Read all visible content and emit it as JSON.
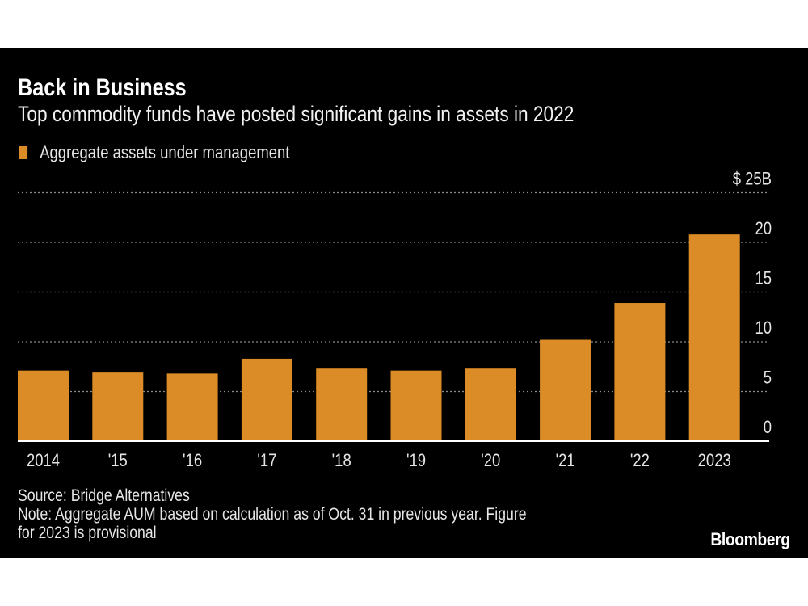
{
  "chart_data": {
    "type": "bar",
    "title": "Back in Business",
    "subtitle": "Top commodity funds have posted significant gains in assets in 2022",
    "categories": [
      "2014",
      "'15",
      "'16",
      "'17",
      "'18",
      "'19",
      "'20",
      "'21",
      "'22",
      "2023"
    ],
    "series": [
      {
        "name": "Aggregate assets under management",
        "values": [
          7.1,
          6.9,
          6.8,
          8.3,
          7.3,
          7.1,
          7.3,
          10.2,
          13.9,
          20.8
        ],
        "color": "#dc8c26"
      }
    ],
    "ylim": [
      0,
      25
    ],
    "yticks": [
      0,
      5,
      10,
      15,
      20,
      25
    ],
    "ytick_labels": [
      "0",
      "5",
      "10",
      "15",
      "20",
      "$ 25B"
    ],
    "grid": true,
    "y_axis_side": "right",
    "legend_position": "top-left",
    "background": "#000000"
  },
  "footer": {
    "source": "Source: Bridge Alternatives",
    "note_line1": "Note: Aggregate AUM based on calculation as of Oct. 31 in previous year. Figure",
    "note_line2": "for 2023 is provisional"
  },
  "logo": "Bloomberg"
}
